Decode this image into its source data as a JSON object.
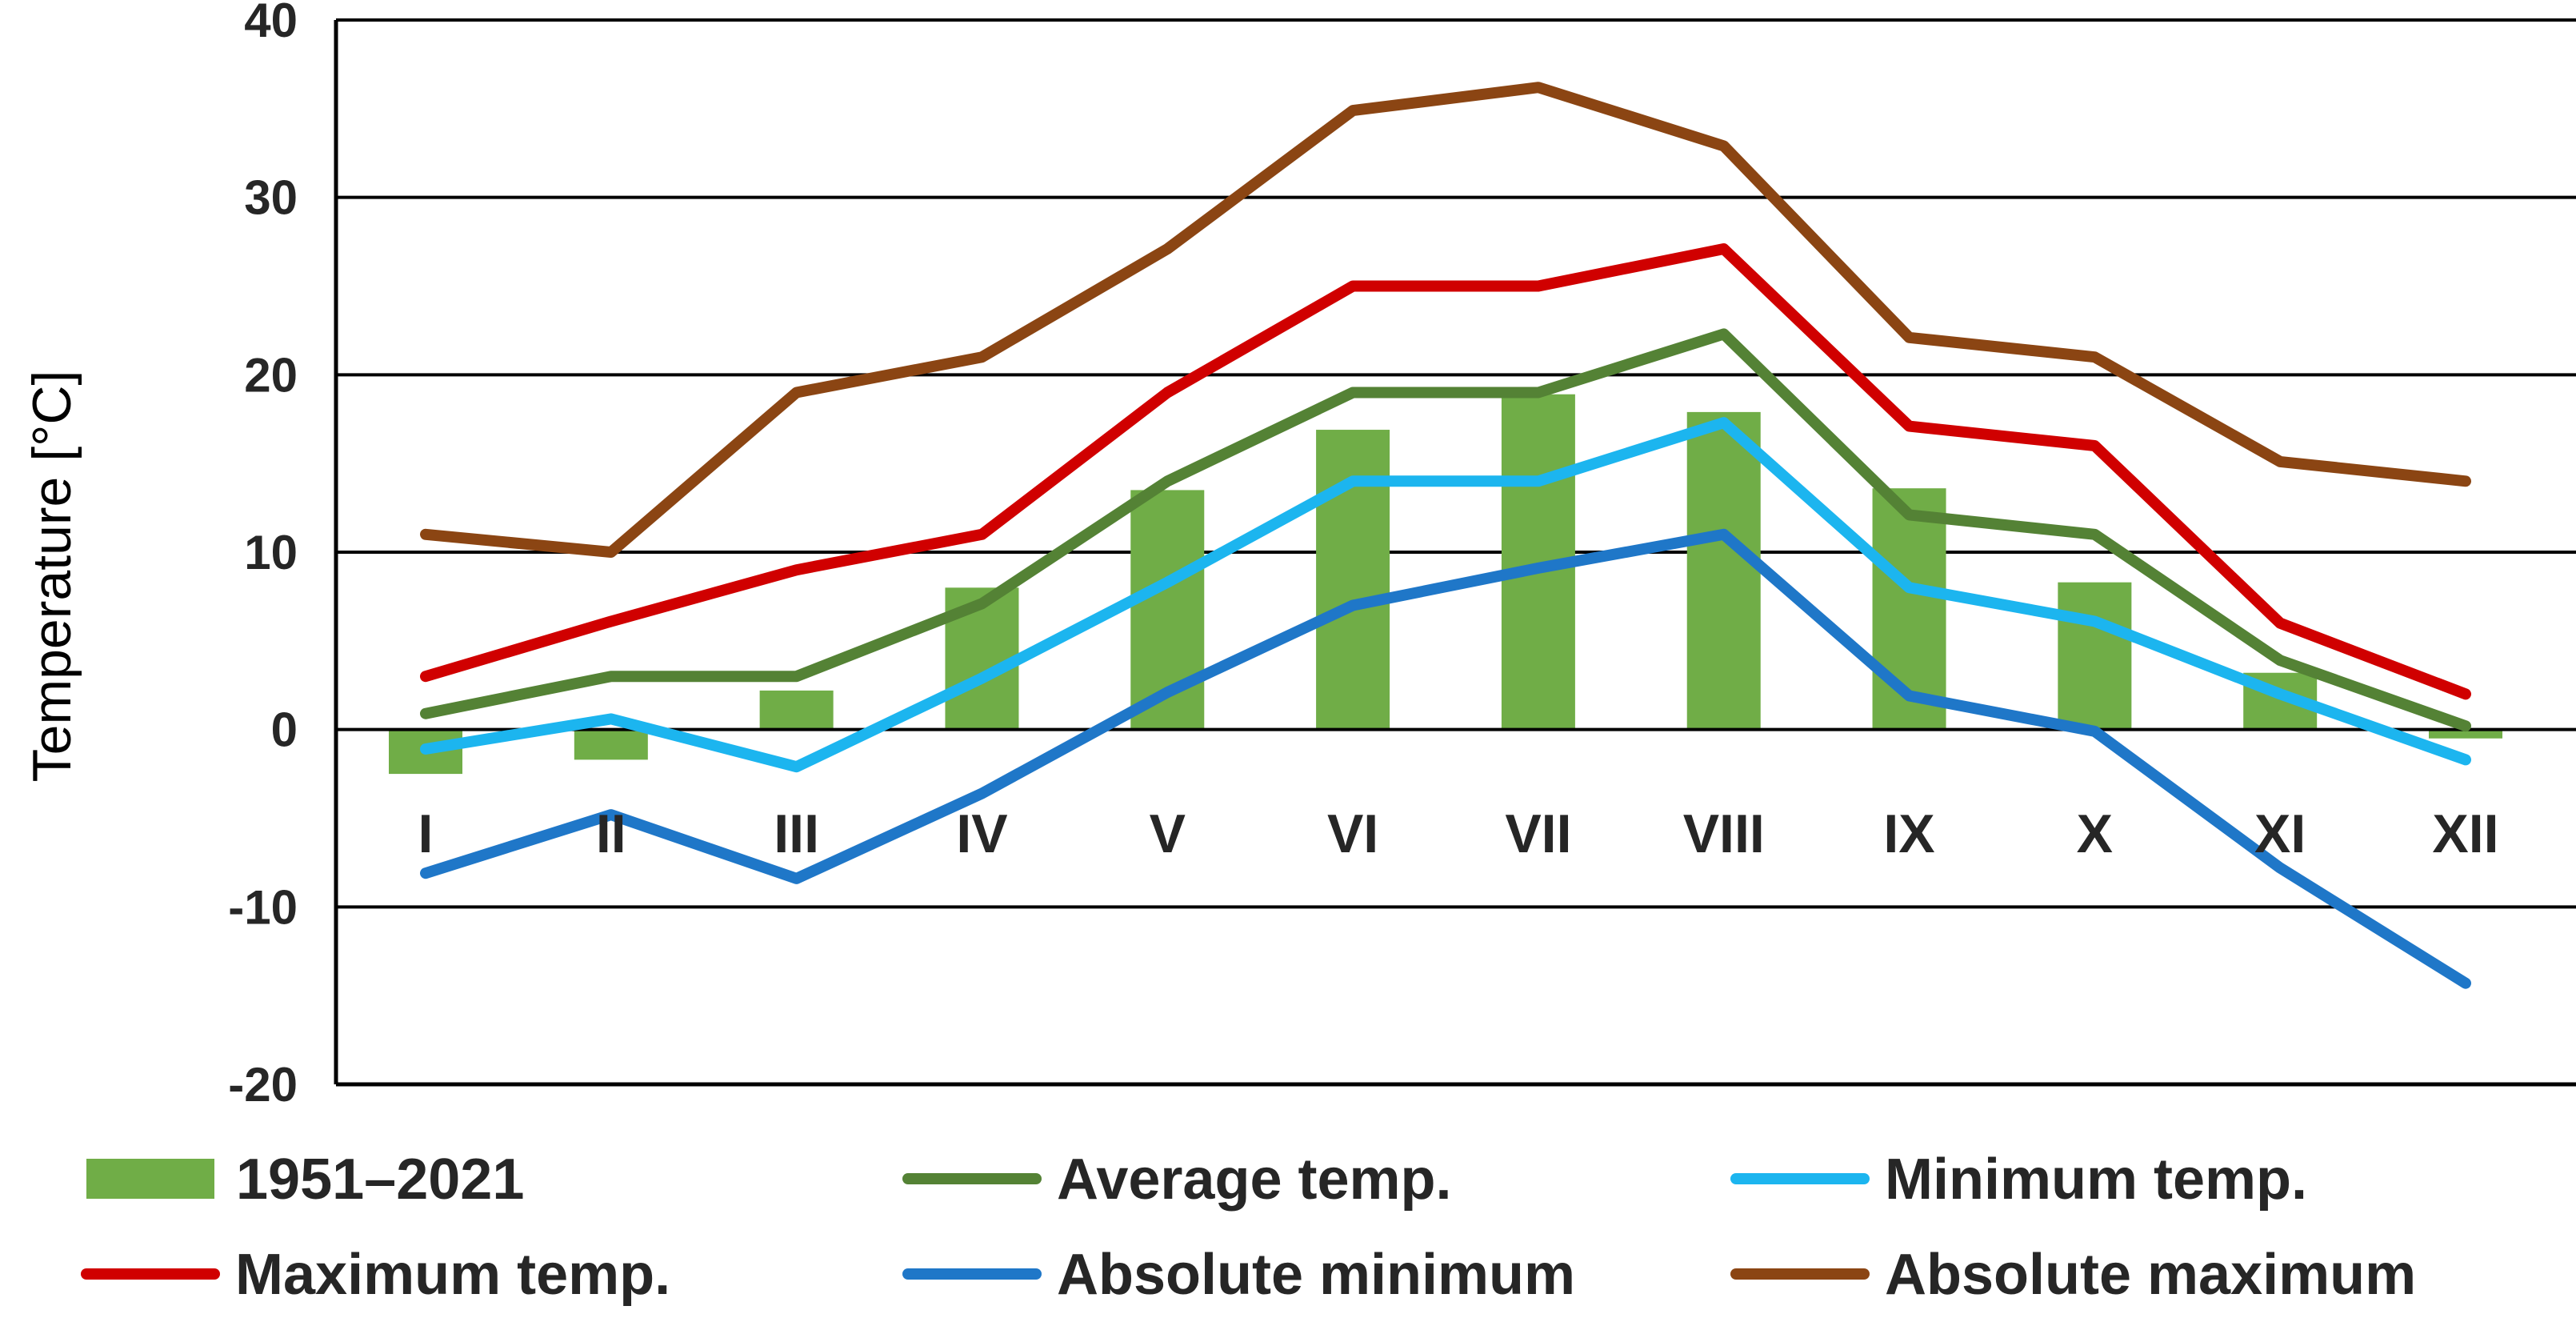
{
  "chart_data": {
    "type": "bar+line",
    "title": "",
    "xlabel": "",
    "ylabel": "Temperature [°C]",
    "ylim": [
      -20,
      40
    ],
    "yticks": [
      -20,
      -10,
      0,
      10,
      20,
      30,
      40
    ],
    "grid": true,
    "legend_position": "bottom",
    "categories": [
      "I",
      "II",
      "III",
      "IV",
      "V",
      "VI",
      "VII",
      "VIII",
      "IX",
      "X",
      "XI",
      "XII"
    ],
    "bar_series": {
      "name": "1951–2021",
      "color": "#70ad47",
      "values": [
        -2.5,
        -1.7,
        2.2,
        8.0,
        13.5,
        16.9,
        18.9,
        17.9,
        13.6,
        8.3,
        3.2,
        -0.5
      ]
    },
    "series": [
      {
        "name": "Average temp.",
        "color": "#548235",
        "values": [
          0.9,
          3.0,
          3.0,
          7.1,
          14.0,
          19.0,
          19.0,
          22.3,
          12.1,
          11.0,
          3.9,
          0.2
        ]
      },
      {
        "name": "Minimum temp.",
        "color": "#1cb5ef",
        "values": [
          -1.1,
          0.6,
          -2.1,
          2.9,
          8.3,
          14.0,
          14.0,
          17.3,
          8.0,
          6.1,
          2.0,
          -1.7
        ]
      },
      {
        "name": "Maximum temp.",
        "color": "#d00000",
        "values": [
          3.0,
          6.1,
          9.0,
          11.0,
          19.0,
          25.0,
          25.0,
          27.1,
          17.1,
          16.0,
          6.0,
          2.0
        ]
      },
      {
        "name": "Absolute minimum",
        "color": "#1f77c8",
        "values": [
          -8.1,
          -4.8,
          -8.4,
          -3.6,
          2.1,
          7.0,
          9.1,
          11.0,
          1.9,
          -0.1,
          -7.8,
          -14.3
        ]
      },
      {
        "name": "Absolute maximum",
        "color": "#8b4513",
        "values": [
          11.0,
          10.0,
          19.0,
          21.0,
          27.1,
          34.9,
          36.2,
          32.9,
          22.1,
          21.0,
          15.1,
          14.0
        ]
      }
    ]
  }
}
